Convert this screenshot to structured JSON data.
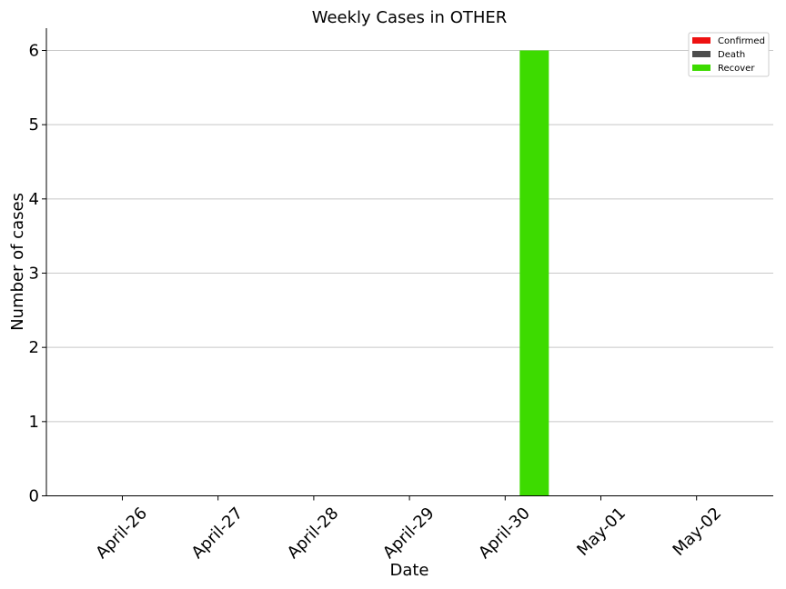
{
  "chart_data": {
    "type": "bar",
    "title": "Weekly Cases in OTHER",
    "xlabel": "Date",
    "ylabel": "Number of cases",
    "categories": [
      "April-26",
      "April-27",
      "April-28",
      "April-29",
      "April-30",
      "May-01",
      "May-02"
    ],
    "series": [
      {
        "name": "Confirmed",
        "color": "#ee1111",
        "values": [
          0,
          0,
          0,
          0,
          0,
          0,
          0
        ]
      },
      {
        "name": "Death",
        "color": "#4d4d4d",
        "values": [
          0,
          0,
          0,
          0,
          0,
          0,
          0
        ]
      },
      {
        "name": "Recover",
        "color": "#3ddb00",
        "values": [
          0,
          0,
          0,
          0,
          6,
          0,
          0
        ]
      }
    ],
    "ylim": [
      0,
      6.3
    ],
    "yticks": [
      0,
      1,
      2,
      3,
      4,
      5,
      6
    ],
    "grid": "horizontal",
    "legend_position": "top-right"
  }
}
